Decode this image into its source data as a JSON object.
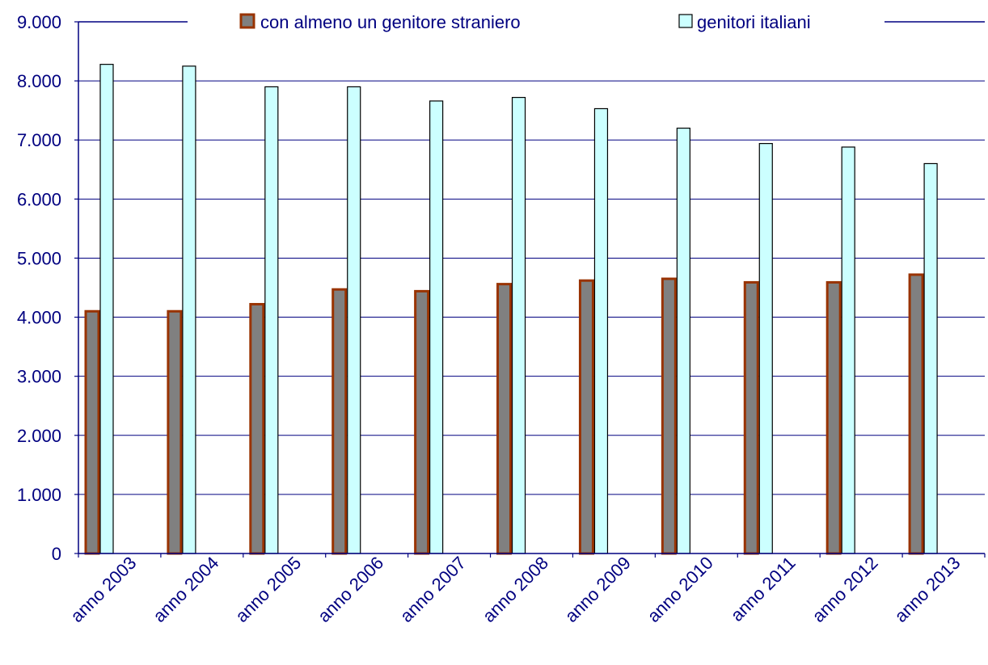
{
  "chart_data": {
    "type": "bar",
    "categories": [
      "anno 2003",
      "anno 2004",
      "anno 2005",
      "anno 2006",
      "anno 2007",
      "anno 2008",
      "anno 2009",
      "anno 2010",
      "anno 2011",
      "anno 2012",
      "anno 2013"
    ],
    "series": [
      {
        "name": "con almeno un genitore straniero",
        "fill": "#808080",
        "stroke": "#993300",
        "values": [
          4100,
          4100,
          4220,
          4470,
          4440,
          4560,
          4620,
          4650,
          4590,
          4590,
          4720
        ]
      },
      {
        "name": "genitori italiani",
        "fill": "#ccffff",
        "stroke": "#000000",
        "values": [
          8280,
          8250,
          7900,
          7900,
          7660,
          7720,
          7530,
          7200,
          6940,
          6880,
          6600
        ]
      }
    ],
    "ylim": [
      0,
      9000
    ],
    "yticks": [
      0,
      1000,
      2000,
      3000,
      4000,
      5000,
      6000,
      7000,
      8000,
      9000
    ],
    "ytick_labels": [
      "0",
      "1.000",
      "2.000",
      "3.000",
      "4.000",
      "5.000",
      "6.000",
      "7.000",
      "8.000",
      "9.000"
    ],
    "grid": true,
    "legend": "top",
    "axis_color": "#000080",
    "grid_color": "#000080"
  }
}
